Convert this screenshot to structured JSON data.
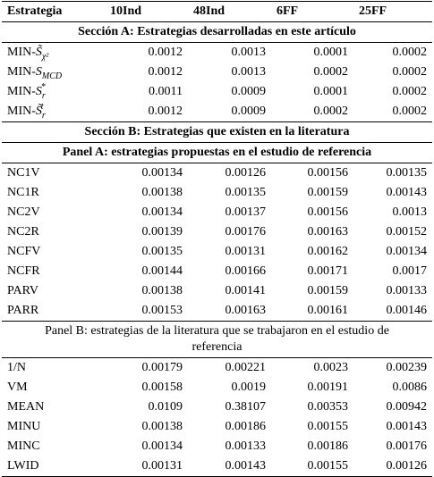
{
  "table": {
    "header": [
      "Estrategia",
      "10Ind",
      "48Ind",
      "6FF",
      "25FF"
    ],
    "blocks": [
      {
        "heading": "Sección A: Estrategias desarrolladas en este artículo",
        "bold": true
      },
      {
        "label": {
          "prefix": "MIN-",
          "symbol": "S̃",
          "sub": "χ²"
        },
        "values": [
          0.0012,
          0.0013,
          0.0001,
          0.0002
        ]
      },
      {
        "label": {
          "prefix": "MIN-",
          "symbol": "S",
          "sub": "MCD"
        },
        "values": [
          0.0012,
          0.0013,
          0.0002,
          0.0002
        ]
      },
      {
        "label": {
          "prefix": "MIN-",
          "symbol": "S",
          "sub": "r",
          "sup": "*"
        },
        "values": [
          0.0011,
          0.0009,
          0.0001,
          0.0002
        ]
      },
      {
        "label": {
          "prefix": "MIN-",
          "symbol": "S̃",
          "sub": "r",
          "sup": "t"
        },
        "values": [
          0.0012,
          0.0009,
          0.0002,
          0.0002
        ]
      },
      {
        "heading": "Sección B: Estrategias que existen en la literatura",
        "bold": true
      },
      {
        "heading": "Panel A: estrategias propuestas en el estudio de referencia",
        "bold": true
      },
      {
        "label": {
          "prefix": "NC1V"
        },
        "values": [
          0.00134,
          0.00126,
          0.00156,
          0.00135
        ]
      },
      {
        "label": {
          "prefix": "NC1R"
        },
        "values": [
          0.00138,
          0.00135,
          0.00159,
          0.00143
        ]
      },
      {
        "label": {
          "prefix": "NC2V"
        },
        "values": [
          0.00134,
          0.00137,
          0.00156,
          0.0013
        ]
      },
      {
        "label": {
          "prefix": "NC2R"
        },
        "values": [
          0.00139,
          0.00176,
          0.00163,
          0.00152
        ]
      },
      {
        "label": {
          "prefix": "NCFV"
        },
        "values": [
          0.00135,
          0.00131,
          0.00162,
          0.00134
        ]
      },
      {
        "label": {
          "prefix": "NCFR"
        },
        "values": [
          0.00144,
          0.00166,
          0.00171,
          0.0017
        ]
      },
      {
        "label": {
          "prefix": "PARV"
        },
        "values": [
          0.00138,
          0.00141,
          0.00159,
          0.00133
        ]
      },
      {
        "label": {
          "prefix": "PARR"
        },
        "values": [
          0.00153,
          0.00163,
          0.00161,
          0.00146
        ]
      },
      {
        "heading": "Panel B: estrategias de la literatura que se trabajaron en el estudio de referencia",
        "bold": false
      },
      {
        "label": {
          "prefix": "1/N"
        },
        "values": [
          0.00179,
          0.00221,
          0.0023,
          0.00239
        ]
      },
      {
        "label": {
          "prefix": "VM"
        },
        "values": [
          0.00158,
          0.0019,
          0.00191,
          0.0086
        ]
      },
      {
        "label": {
          "prefix": "MEAN"
        },
        "values": [
          0.0109,
          0.38107,
          0.00353,
          0.00942
        ]
      },
      {
        "label": {
          "prefix": "MINU"
        },
        "values": [
          0.00138,
          0.00186,
          0.00155,
          0.00143
        ]
      },
      {
        "label": {
          "prefix": "MINC"
        },
        "values": [
          0.00134,
          0.00133,
          0.00186,
          0.00176
        ]
      },
      {
        "label": {
          "prefix": "LWID"
        },
        "values": [
          0.00131,
          0.00143,
          0.00155,
          0.00126
        ]
      }
    ]
  }
}
